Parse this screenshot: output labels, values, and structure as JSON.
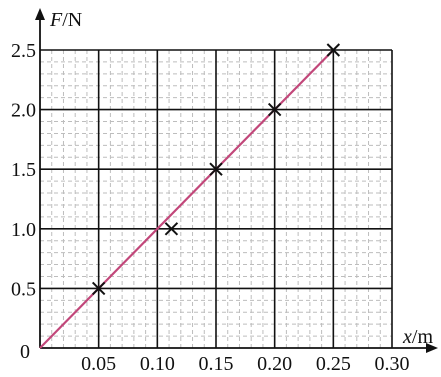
{
  "chart_data": {
    "type": "scatter",
    "xlabel_var": "x",
    "xlabel_unit": "/m",
    "ylabel_var": "F",
    "ylabel_unit": "/N",
    "origin_label": "0",
    "xlim": [
      0,
      0.3
    ],
    "ylim": [
      0,
      2.5
    ],
    "x_ticks": [
      0.05,
      0.1,
      0.15,
      0.2,
      0.25,
      0.3
    ],
    "x_tick_labels": [
      "0.05",
      "0.10",
      "0.15",
      "0.20",
      "0.25",
      "0.30"
    ],
    "y_ticks": [
      0.5,
      1.0,
      1.5,
      2.0,
      2.5
    ],
    "y_tick_labels": [
      "0.5",
      "1.0",
      "1.5",
      "2.0",
      "2.5"
    ],
    "grid": true,
    "points": [
      {
        "x": 0.05,
        "y": 0.5
      },
      {
        "x": 0.112,
        "y": 1.0
      },
      {
        "x": 0.15,
        "y": 1.5
      },
      {
        "x": 0.2,
        "y": 2.0
      },
      {
        "x": 0.25,
        "y": 2.5
      }
    ],
    "fit_line": {
      "x": [
        0,
        0.25
      ],
      "y": [
        0,
        2.5
      ]
    },
    "colors": {
      "fit_line": "#c2477a",
      "marker": "#111111",
      "grid_major": "#111111",
      "grid_minor": "#bdbdbd"
    }
  }
}
